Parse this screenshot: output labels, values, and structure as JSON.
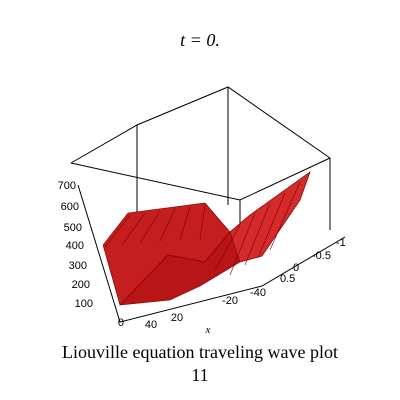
{
  "title": "t = 0.",
  "z_axis": {
    "ticks": [
      700,
      600,
      500,
      400,
      300,
      200,
      100,
      0
    ]
  },
  "x_axis": {
    "label": "x",
    "ticks": [
      40,
      20,
      -20,
      -40
    ]
  },
  "y_axis": {
    "ticks": [
      -1,
      -0.5,
      0,
      0.5
    ]
  },
  "caption": [
    "Liouville equation  traveling wave plot",
    "11"
  ]
}
